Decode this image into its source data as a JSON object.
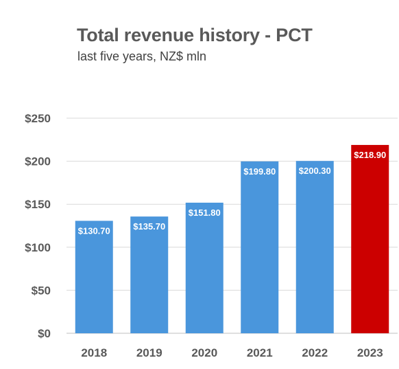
{
  "chart_data": {
    "type": "bar",
    "title": "Total revenue history - PCT",
    "subtitle": "last five years, NZ$ mln",
    "categories": [
      "2018",
      "2019",
      "2020",
      "2021",
      "2022",
      "2023"
    ],
    "values": [
      130.7,
      135.7,
      151.8,
      199.8,
      200.3,
      218.9
    ],
    "data_labels": [
      "$130.70",
      "$135.70",
      "$151.80",
      "$199.80",
      "$200.30",
      "$218.90"
    ],
    "ylim": [
      0,
      250
    ],
    "yticks": [
      0,
      50,
      100,
      150,
      200,
      250
    ],
    "ytick_labels": [
      "$0",
      "$50",
      "$100",
      "$150",
      "$200",
      "$250"
    ],
    "grid": true,
    "colors": [
      "#4a96dc",
      "#4a96dc",
      "#4a96dc",
      "#4a96dc",
      "#4a96dc",
      "#cc0000"
    ]
  }
}
